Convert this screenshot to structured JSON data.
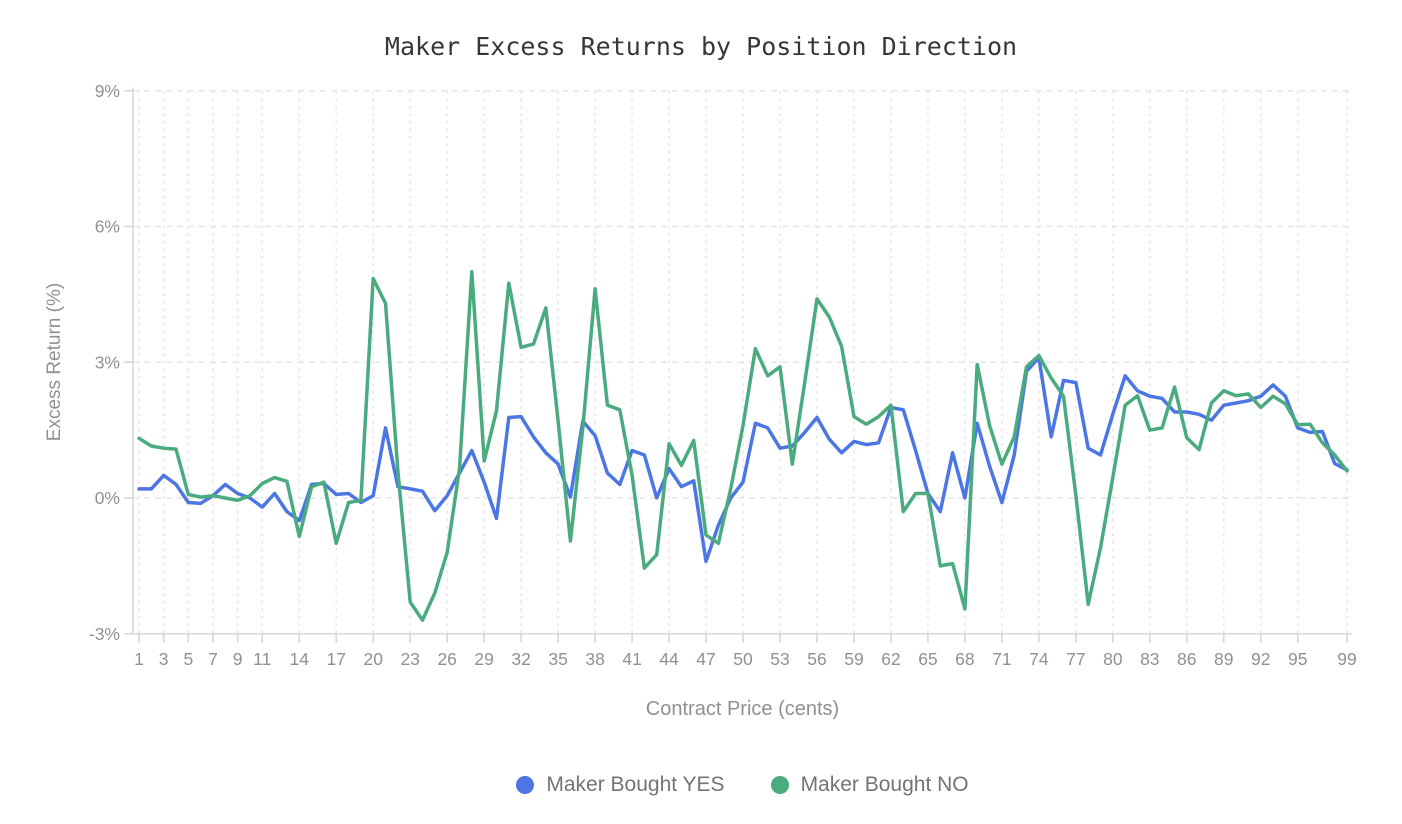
{
  "title": "Maker Excess Returns by Position Direction",
  "colors": {
    "yes_line": "#4b76e3",
    "no_line": "#4aab7e",
    "grid": "#e5e6e8",
    "axis": "#d6d7da",
    "tick_label": "#8e9094"
  },
  "y_axis": {
    "title": "Excess Return (%)",
    "tick_labels": [
      "9%",
      "6%",
      "3%",
      "0%",
      "-3%"
    ],
    "tick_values": [
      9,
      6,
      3,
      0,
      -3
    ]
  },
  "x_axis": {
    "title": "Contract Price (cents)",
    "tick_values": [
      1,
      3,
      5,
      7,
      9,
      11,
      14,
      17,
      20,
      23,
      26,
      29,
      32,
      35,
      38,
      41,
      44,
      47,
      50,
      53,
      56,
      59,
      62,
      65,
      68,
      71,
      74,
      77,
      80,
      83,
      86,
      89,
      92,
      95,
      99
    ]
  },
  "legend": [
    {
      "label": "Maker Bought YES",
      "color": "#4b76e3"
    },
    {
      "label": "Maker Bought NO",
      "color": "#4aab7e"
    }
  ],
  "chart_data": {
    "type": "line",
    "title": "Maker Excess Returns by Position Direction",
    "xlabel": "Contract Price (cents)",
    "ylabel": "Excess Return (%)",
    "ylim": [
      -3,
      9.35
    ],
    "xlim": [
      1,
      99
    ],
    "grid": true,
    "legend_position": "bottom",
    "x": [
      1,
      2,
      3,
      4,
      5,
      6,
      7,
      8,
      9,
      10,
      11,
      12,
      13,
      14,
      15,
      16,
      17,
      18,
      19,
      20,
      21,
      22,
      23,
      24,
      25,
      26,
      27,
      28,
      29,
      30,
      31,
      32,
      33,
      34,
      35,
      36,
      37,
      38,
      39,
      40,
      41,
      42,
      43,
      44,
      45,
      46,
      47,
      48,
      49,
      50,
      51,
      52,
      53,
      54,
      55,
      56,
      57,
      58,
      59,
      60,
      61,
      62,
      63,
      64,
      65,
      66,
      67,
      68,
      69,
      70,
      71,
      72,
      73,
      74,
      75,
      76,
      77,
      78,
      79,
      80,
      81,
      82,
      83,
      84,
      85,
      86,
      87,
      88,
      89,
      90,
      91,
      92,
      93,
      94,
      95,
      96,
      97,
      98,
      99
    ],
    "series": [
      {
        "name": "Maker Bought YES",
        "color": "#4b76e3",
        "values": [
          0.2,
          0.2,
          0.5,
          0.3,
          -0.1,
          -0.12,
          0.05,
          0.3,
          0.1,
          0.0,
          -0.2,
          0.1,
          -0.3,
          -0.5,
          0.3,
          0.32,
          0.08,
          0.1,
          -0.1,
          0.05,
          1.55,
          0.25,
          0.2,
          0.15,
          -0.28,
          0.05,
          0.55,
          1.05,
          0.35,
          -0.45,
          1.78,
          1.8,
          1.35,
          1.0,
          0.75,
          0.02,
          1.7,
          1.38,
          0.55,
          0.3,
          1.05,
          0.95,
          0.0,
          0.65,
          0.25,
          0.38,
          -1.4,
          -0.6,
          0.0,
          0.35,
          1.65,
          1.55,
          1.1,
          1.15,
          1.45,
          1.78,
          1.3,
          1.0,
          1.25,
          1.18,
          1.22,
          2.0,
          1.95,
          1.05,
          0.1,
          -0.3,
          1.0,
          0.0,
          1.65,
          0.7,
          -0.1,
          0.95,
          2.8,
          3.1,
          1.35,
          2.6,
          2.55,
          1.1,
          0.95,
          1.85,
          2.7,
          2.37,
          2.25,
          2.2,
          1.9,
          1.9,
          1.85,
          1.72,
          2.05,
          2.1,
          2.15,
          2.25,
          2.5,
          2.25,
          1.55,
          1.45,
          1.47,
          0.76,
          0.62
        ]
      },
      {
        "name": "Maker Bought NO",
        "color": "#4aab7e",
        "values": [
          1.32,
          1.15,
          1.1,
          1.08,
          0.08,
          0.02,
          0.05,
          0.0,
          -0.05,
          0.05,
          0.32,
          0.45,
          0.37,
          -0.85,
          0.25,
          0.35,
          -1.0,
          -0.1,
          -0.05,
          4.85,
          4.3,
          0.6,
          -2.3,
          -2.7,
          -2.1,
          -1.2,
          0.65,
          5.0,
          0.82,
          1.93,
          4.75,
          3.33,
          3.4,
          4.2,
          1.7,
          -0.95,
          1.55,
          4.62,
          2.05,
          1.95,
          0.5,
          -1.55,
          -1.25,
          1.2,
          0.72,
          1.27,
          -0.82,
          -1.0,
          0.2,
          1.6,
          3.3,
          2.7,
          2.9,
          0.75,
          2.55,
          4.4,
          4.0,
          3.35,
          1.8,
          1.63,
          1.8,
          2.05,
          -0.3,
          0.1,
          0.1,
          -1.5,
          -1.45,
          -2.45,
          2.95,
          1.6,
          0.75,
          1.35,
          2.9,
          3.15,
          2.65,
          2.25,
          0.05,
          -2.35,
          -1.1,
          0.45,
          2.05,
          2.26,
          1.5,
          1.55,
          2.45,
          1.33,
          1.07,
          2.1,
          2.37,
          2.26,
          2.3,
          2.0,
          2.25,
          2.08,
          1.62,
          1.63,
          1.22,
          0.95,
          0.6
        ]
      }
    ]
  }
}
